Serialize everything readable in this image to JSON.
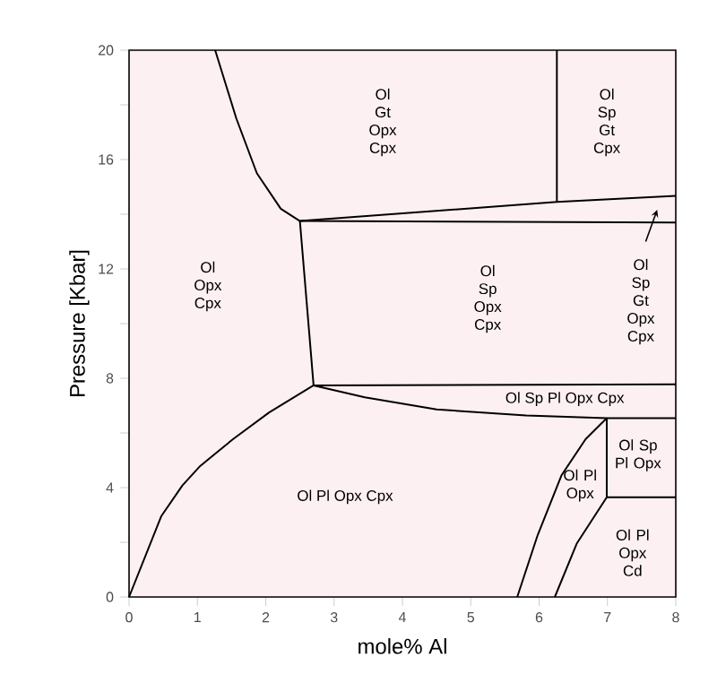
{
  "chart_data": {
    "type": "line",
    "xlabel": "mole% Al",
    "ylabel": "Pressure [Kbar]",
    "xlim": [
      0,
      8
    ],
    "xticks": [
      0,
      1,
      2,
      3,
      4,
      5,
      6,
      7,
      8
    ],
    "ylim": [
      0,
      20
    ],
    "yticks": [
      0,
      {
        "value": 2,
        "label": null
      },
      4,
      {
        "value": 6,
        "label": null
      },
      8,
      {
        "value": 10,
        "label": null
      },
      12,
      {
        "value": 14,
        "label": null
      },
      16,
      {
        "value": 18,
        "label": null
      },
      20
    ],
    "marker": "none",
    "line_style": "solid",
    "series": [
      {
        "color": "#000000",
        "x": [
          0,
          0.47,
          0.78,
          1.04,
          1.52,
          2.05,
          2.7
        ],
        "values": [
          0,
          2.95,
          4.08,
          4.79,
          5.77,
          6.75,
          7.74
        ]
      },
      {
        "color": "#000000",
        "x": [
          2.7,
          2.5
        ],
        "values": [
          7.74,
          13.75
        ]
      },
      {
        "color": "#000000",
        "x": [
          1.26,
          1.57,
          1.87,
          2.22,
          2.5
        ],
        "values": [
          20,
          17.5,
          15.5,
          14.2,
          13.75
        ]
      },
      {
        "color": "#000000",
        "x": [
          2.5,
          6.26,
          8
        ],
        "values": [
          13.75,
          14.45,
          14.67
        ]
      },
      {
        "color": "#000000",
        "x": [
          2.5,
          8
        ],
        "values": [
          13.75,
          13.7
        ]
      },
      {
        "color": "#000000",
        "x": [
          6.26,
          6.26
        ],
        "values": [
          14.45,
          20
        ]
      },
      {
        "color": "#000000",
        "x": [
          2.7,
          8
        ],
        "values": [
          7.74,
          7.78
        ]
      },
      {
        "color": "#000000",
        "x": [
          2.7,
          3.45,
          4.5,
          5.81,
          6.99,
          8
        ],
        "values": [
          7.74,
          7.3,
          6.86,
          6.64,
          6.54,
          6.54
        ]
      },
      {
        "color": "#000000",
        "x": [
          6.99,
          6.99
        ],
        "values": [
          6.54,
          3.65
        ]
      },
      {
        "color": "#000000",
        "x": [
          6.99,
          8
        ],
        "values": [
          3.65,
          3.65
        ]
      },
      {
        "color": "#000000",
        "x": [
          5.68,
          5.98,
          6.33,
          6.68,
          6.99
        ],
        "values": [
          0,
          2.27,
          4.46,
          5.77,
          6.54
        ]
      },
      {
        "color": "#000000",
        "x": [
          6.23,
          6.55,
          6.99
        ],
        "values": [
          0,
          1.95,
          3.65
        ]
      }
    ],
    "annotations": [
      "Ol Opx Cpx",
      "Ol Gt Opx Cpx",
      "Ol Sp Gt Cpx",
      "Ol Sp Opx Cpx",
      "Ol Sp Gt Opx Cpx",
      "Ol Sp Pl Opx Cpx",
      "Ol Pl Opx Cpx",
      "Ol Pl Opx",
      "Ol Sp Pl Opx",
      "Ol Pl Opx Cd"
    ]
  }
}
